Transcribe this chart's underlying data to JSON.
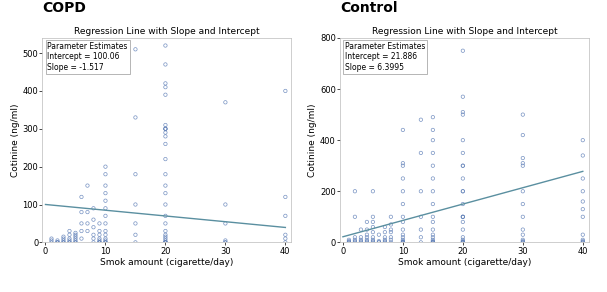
{
  "copd": {
    "title_group": "COPD",
    "title_plot": "Regression Line with Slope and Intercept",
    "xlabel": "Smok amount (cigarette/day)",
    "ylabel": "Cotinine (ng/ml)",
    "intercept": 100.06,
    "slope": -1.517,
    "param_text": "Parameter Estimates\nIntercept = 100.06\nSlope = -1.517",
    "xlim": [
      -0.5,
      41
    ],
    "ylim": [
      0,
      540
    ],
    "yticks": [
      0,
      100,
      200,
      300,
      400,
      500
    ],
    "xticks": [
      0,
      10,
      20,
      30,
      40
    ],
    "scatter_x": [
      1,
      1,
      1,
      2,
      2,
      2,
      2,
      3,
      3,
      3,
      3,
      3,
      4,
      4,
      4,
      4,
      4,
      4,
      5,
      5,
      5,
      5,
      5,
      5,
      5,
      6,
      6,
      6,
      6,
      6,
      7,
      7,
      7,
      7,
      8,
      8,
      8,
      8,
      8,
      8,
      9,
      9,
      9,
      9,
      9,
      9,
      9,
      9,
      10,
      10,
      10,
      10,
      10,
      10,
      10,
      10,
      10,
      10,
      10,
      10,
      10,
      10,
      10,
      15,
      15,
      15,
      15,
      15,
      15,
      15,
      20,
      20,
      20,
      20,
      20,
      20,
      20,
      20,
      20,
      20,
      20,
      20,
      20,
      20,
      20,
      20,
      20,
      20,
      20,
      20,
      20,
      20,
      20,
      20,
      20,
      20,
      20,
      20,
      20,
      30,
      30,
      30,
      30,
      30,
      30,
      40,
      40,
      40,
      40,
      40,
      40
    ],
    "scatter_y": [
      5,
      10,
      0,
      0,
      0,
      0,
      5,
      0,
      0,
      5,
      10,
      15,
      0,
      0,
      5,
      10,
      20,
      30,
      0,
      0,
      5,
      10,
      15,
      20,
      25,
      10,
      30,
      50,
      80,
      120,
      30,
      50,
      80,
      150,
      0,
      10,
      20,
      40,
      60,
      90,
      0,
      0,
      0,
      5,
      10,
      20,
      30,
      50,
      0,
      0,
      0,
      5,
      10,
      20,
      30,
      50,
      70,
      90,
      110,
      130,
      150,
      180,
      200,
      0,
      20,
      50,
      100,
      180,
      330,
      510,
      0,
      0,
      0,
      0,
      0,
      5,
      10,
      15,
      20,
      30,
      50,
      70,
      100,
      130,
      150,
      180,
      220,
      260,
      300,
      300,
      300,
      290,
      280,
      310,
      420,
      520,
      470,
      410,
      390,
      0,
      0,
      5,
      50,
      100,
      370,
      0,
      10,
      20,
      70,
      120,
      400
    ]
  },
  "control": {
    "title_group": "Control",
    "title_plot": "Regression Line with Slope and Intercept",
    "xlabel": "Smok amount (cigarette/day)",
    "ylabel": "Cotinine (ng/ml)",
    "intercept": 21.886,
    "slope": 6.3995,
    "param_text": "Parameter Estimates\nIntercept = 21.886\nSlope = 6.3995",
    "xlim": [
      -0.5,
      41
    ],
    "ylim": [
      0,
      800
    ],
    "yticks": [
      0,
      200,
      400,
      600,
      800
    ],
    "xticks": [
      0,
      10,
      20,
      30,
      40
    ],
    "scatter_x": [
      1,
      1,
      1,
      1,
      2,
      2,
      2,
      2,
      2,
      2,
      3,
      3,
      3,
      3,
      3,
      4,
      4,
      4,
      4,
      4,
      4,
      4,
      5,
      5,
      5,
      5,
      5,
      5,
      5,
      5,
      5,
      6,
      6,
      6,
      6,
      7,
      7,
      7,
      7,
      7,
      7,
      8,
      8,
      8,
      8,
      8,
      8,
      8,
      10,
      10,
      10,
      10,
      10,
      10,
      10,
      10,
      10,
      10,
      10,
      10,
      10,
      10,
      10,
      10,
      10,
      13,
      13,
      13,
      13,
      13,
      13,
      13,
      15,
      15,
      15,
      15,
      15,
      15,
      15,
      15,
      15,
      15,
      15,
      15,
      15,
      15,
      15,
      15,
      15,
      15,
      20,
      20,
      20,
      20,
      20,
      20,
      20,
      20,
      20,
      20,
      20,
      20,
      20,
      20,
      20,
      20,
      20,
      20,
      20,
      20,
      20,
      20,
      20,
      20,
      30,
      30,
      30,
      30,
      30,
      30,
      30,
      30,
      30,
      30,
      30,
      30,
      30,
      30,
      40,
      40,
      40,
      40,
      40,
      40,
      40,
      40,
      40,
      40,
      40,
      40
    ],
    "scatter_y": [
      0,
      0,
      5,
      10,
      0,
      5,
      10,
      20,
      100,
      200,
      0,
      5,
      10,
      20,
      50,
      0,
      5,
      10,
      20,
      30,
      50,
      80,
      0,
      5,
      10,
      20,
      40,
      60,
      80,
      100,
      200,
      0,
      0,
      5,
      30,
      0,
      5,
      10,
      20,
      40,
      60,
      0,
      10,
      20,
      40,
      50,
      70,
      100,
      0,
      0,
      0,
      0,
      5,
      10,
      20,
      30,
      50,
      80,
      100,
      150,
      200,
      250,
      300,
      310,
      440,
      0,
      20,
      50,
      100,
      200,
      350,
      480,
      0,
      0,
      0,
      5,
      10,
      20,
      30,
      50,
      80,
      100,
      150,
      200,
      250,
      300,
      350,
      400,
      440,
      490,
      0,
      0,
      0,
      5,
      10,
      20,
      50,
      80,
      100,
      150,
      200,
      250,
      300,
      350,
      400,
      510,
      570,
      750,
      0,
      100,
      100,
      200,
      300,
      500,
      0,
      0,
      5,
      10,
      30,
      50,
      100,
      150,
      200,
      300,
      310,
      330,
      420,
      500,
      0,
      0,
      5,
      10,
      30,
      100,
      130,
      160,
      200,
      250,
      340,
      400
    ]
  },
  "scatter_color": "#6080b8",
  "line_color": "#5a8fa0",
  "plot_title_fontsize": 6.5,
  "label_fontsize": 6.5,
  "tick_fontsize": 6,
  "annot_fontsize": 5.5,
  "group_title_fontsize": 10,
  "background_color": "#ffffff",
  "spine_color": "#bbbbbb"
}
